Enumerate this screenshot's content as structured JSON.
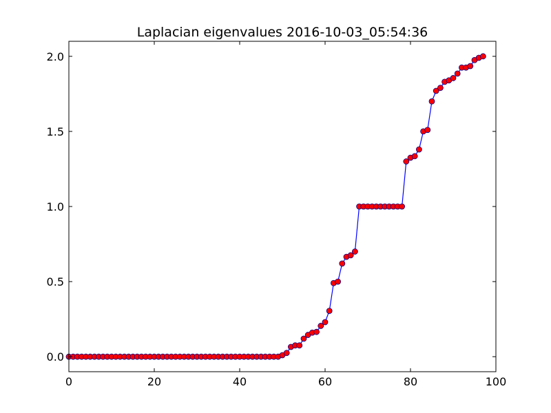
{
  "chart_data": {
    "type": "line",
    "title": "Laplacian eigenvalues 2016-10-03_05:54:36",
    "xlabel": "",
    "ylabel": "",
    "xlim": [
      0,
      100
    ],
    "ylim": [
      -0.1,
      2.1
    ],
    "xticks": [
      0,
      20,
      40,
      60,
      80,
      100
    ],
    "yticks": [
      0.0,
      0.5,
      1.0,
      1.5,
      2.0
    ],
    "xtick_labels": [
      "0",
      "20",
      "40",
      "60",
      "80",
      "100"
    ],
    "ytick_labels": [
      "0.0",
      "0.5",
      "1.0",
      "1.5",
      "2.0"
    ],
    "grid": false,
    "legend": "none",
    "series": [
      {
        "line_color": "#0000ff",
        "marker": "circle",
        "marker_face": "#ff0000",
        "marker_edge": "#00008b",
        "x": [
          0,
          1,
          2,
          3,
          4,
          5,
          6,
          7,
          8,
          9,
          10,
          11,
          12,
          13,
          14,
          15,
          16,
          17,
          18,
          19,
          20,
          21,
          22,
          23,
          24,
          25,
          26,
          27,
          28,
          29,
          30,
          31,
          32,
          33,
          34,
          35,
          36,
          37,
          38,
          39,
          40,
          41,
          42,
          43,
          44,
          45,
          46,
          47,
          48,
          49,
          50,
          51,
          52,
          53,
          54,
          55,
          56,
          57,
          58,
          59,
          60,
          61,
          62,
          63,
          64,
          65,
          66,
          67,
          68,
          69,
          70,
          71,
          72,
          73,
          74,
          75,
          76,
          77,
          78,
          79,
          80,
          81,
          82,
          83,
          84,
          85,
          86,
          87,
          88,
          89,
          90,
          91,
          92,
          93,
          94,
          95,
          96,
          97
        ],
        "y": [
          0,
          0,
          0,
          0,
          0,
          0,
          0,
          0,
          0,
          0,
          0,
          0,
          0,
          0,
          0,
          0,
          0,
          0,
          0,
          0,
          0,
          0,
          0,
          0,
          0,
          0,
          0,
          0,
          0,
          0,
          0,
          0,
          0,
          0,
          0,
          0,
          0,
          0,
          0,
          0,
          0,
          0,
          0,
          0,
          0,
          0,
          0,
          0,
          0,
          0,
          0.01,
          0.025,
          0.065,
          0.075,
          0.075,
          0.12,
          0.145,
          0.16,
          0.165,
          0.205,
          0.23,
          0.305,
          0.49,
          0.5,
          0.62,
          0.665,
          0.675,
          0.7,
          1.0,
          1.0,
          1.0,
          1.0,
          1.0,
          1.0,
          1.0,
          1.0,
          1.0,
          1.0,
          1.0,
          1.3,
          1.325,
          1.335,
          1.38,
          1.5,
          1.51,
          1.7,
          1.77,
          1.79,
          1.83,
          1.84,
          1.855,
          1.885,
          1.925,
          1.925,
          1.935,
          1.975,
          1.99,
          2.0
        ]
      }
    ]
  }
}
